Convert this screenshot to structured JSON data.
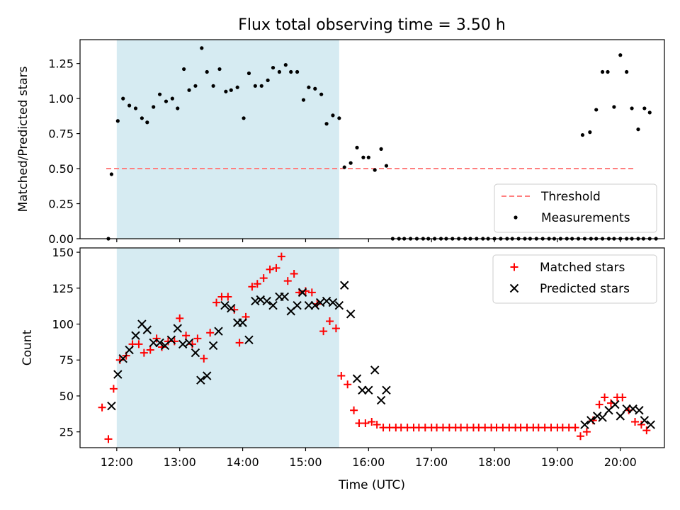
{
  "chart_data": [
    {
      "type": "scatter",
      "title": "Flux total observing time = 3.50 h",
      "xlabel": "",
      "ylabel": "Matched/Predicted stars",
      "xlim": [
        "11:25",
        "20:42"
      ],
      "ylim": [
        0,
        1.42
      ],
      "yticks": [
        "0.00",
        "0.25",
        "0.50",
        "0.75",
        "1.00",
        "1.25"
      ],
      "shaded_span": {
        "start": "12:00",
        "end": "15:32",
        "color": "#add8e6"
      },
      "threshold": {
        "name": "Threshold",
        "value": 0.5,
        "x_start": "11:50",
        "x_end": "20:15",
        "color": "#ff7f7f",
        "style": "dashed"
      },
      "legend": {
        "placement": "lower-right",
        "entries": [
          "Threshold",
          "Measurements"
        ]
      },
      "series": [
        {
          "name": "Measurements",
          "color": "#000000",
          "marker": "dot",
          "points": [
            [
              "11:52",
              0.0
            ],
            [
              "11:55",
              0.46
            ],
            [
              "12:01",
              0.84
            ],
            [
              "12:06",
              1.0
            ],
            [
              "12:12",
              0.95
            ],
            [
              "12:18",
              0.93
            ],
            [
              "12:24",
              0.86
            ],
            [
              "12:29",
              0.83
            ],
            [
              "12:35",
              0.94
            ],
            [
              "12:41",
              1.03
            ],
            [
              "12:47",
              0.98
            ],
            [
              "12:53",
              1.0
            ],
            [
              "12:58",
              0.93
            ],
            [
              "13:04",
              1.21
            ],
            [
              "13:09",
              1.06
            ],
            [
              "13:15",
              1.09
            ],
            [
              "13:21",
              1.36
            ],
            [
              "13:26",
              1.19
            ],
            [
              "13:32",
              1.09
            ],
            [
              "13:38",
              1.21
            ],
            [
              "13:44",
              1.05
            ],
            [
              "13:49",
              1.06
            ],
            [
              "13:55",
              1.08
            ],
            [
              "14:01",
              0.86
            ],
            [
              "14:06",
              1.18
            ],
            [
              "14:12",
              1.09
            ],
            [
              "14:18",
              1.09
            ],
            [
              "14:24",
              1.13
            ],
            [
              "14:29",
              1.22
            ],
            [
              "14:35",
              1.19
            ],
            [
              "14:41",
              1.24
            ],
            [
              "14:46",
              1.19
            ],
            [
              "14:52",
              1.19
            ],
            [
              "14:58",
              0.99
            ],
            [
              "15:03",
              1.08
            ],
            [
              "15:09",
              1.07
            ],
            [
              "15:15",
              1.03
            ],
            [
              "15:20",
              0.82
            ],
            [
              "15:26",
              0.88
            ],
            [
              "15:32",
              0.86
            ],
            [
              "15:37",
              0.51
            ],
            [
              "15:43",
              0.54
            ],
            [
              "15:49",
              0.65
            ],
            [
              "15:55",
              0.58
            ],
            [
              "16:00",
              0.58
            ],
            [
              "16:06",
              0.49
            ],
            [
              "16:12",
              0.64
            ],
            [
              "16:17",
              0.52
            ],
            [
              "16:23",
              0.0
            ],
            [
              "16:29",
              0.0
            ],
            [
              "16:34",
              0.0
            ],
            [
              "16:40",
              0.0
            ],
            [
              "16:46",
              0.0
            ],
            [
              "16:52",
              0.0
            ],
            [
              "16:57",
              0.0
            ],
            [
              "17:03",
              0.0
            ],
            [
              "17:09",
              0.0
            ],
            [
              "17:14",
              0.0
            ],
            [
              "17:20",
              0.0
            ],
            [
              "17:26",
              0.0
            ],
            [
              "17:32",
              0.0
            ],
            [
              "17:37",
              0.0
            ],
            [
              "17:43",
              0.0
            ],
            [
              "17:49",
              0.0
            ],
            [
              "17:54",
              0.0
            ],
            [
              "18:00",
              0.0
            ],
            [
              "18:06",
              0.0
            ],
            [
              "18:12",
              0.0
            ],
            [
              "18:17",
              0.0
            ],
            [
              "18:23",
              0.0
            ],
            [
              "18:29",
              0.0
            ],
            [
              "18:34",
              0.0
            ],
            [
              "18:40",
              0.0
            ],
            [
              "18:46",
              0.0
            ],
            [
              "18:52",
              0.0
            ],
            [
              "18:57",
              0.0
            ],
            [
              "19:03",
              0.0
            ],
            [
              "19:09",
              0.0
            ],
            [
              "19:14",
              0.0
            ],
            [
              "19:20",
              0.0
            ],
            [
              "19:26",
              0.0
            ],
            [
              "19:32",
              0.0
            ],
            [
              "19:37",
              0.0
            ],
            [
              "19:43",
              0.0
            ],
            [
              "19:49",
              0.0
            ],
            [
              "19:54",
              0.0
            ],
            [
              "20:00",
              0.0
            ],
            [
              "20:06",
              0.0
            ],
            [
              "20:11",
              0.0
            ],
            [
              "20:17",
              0.0
            ],
            [
              "20:22",
              0.0
            ],
            [
              "20:28",
              0.0
            ],
            [
              "20:34",
              0.0
            ],
            [
              "19:24",
              0.74
            ],
            [
              "19:31",
              0.76
            ],
            [
              "19:37",
              0.92
            ],
            [
              "19:43",
              1.19
            ],
            [
              "19:48",
              1.19
            ],
            [
              "19:54",
              0.94
            ],
            [
              "20:00",
              1.31
            ],
            [
              "20:06",
              1.19
            ],
            [
              "20:11",
              0.93
            ],
            [
              "20:17",
              0.78
            ],
            [
              "20:23",
              0.93
            ],
            [
              "20:28",
              0.9
            ]
          ]
        }
      ]
    },
    {
      "type": "scatter",
      "title": "",
      "xlabel": "Time (UTC)",
      "ylabel": "Count",
      "xlim": [
        "11:25",
        "20:42"
      ],
      "ylim": [
        14,
        153
      ],
      "yticks": [
        "25",
        "50",
        "75",
        "100",
        "125",
        "150"
      ],
      "xticks": [
        "12:00",
        "13:00",
        "14:00",
        "15:00",
        "16:00",
        "17:00",
        "18:00",
        "19:00",
        "20:00"
      ],
      "shaded_span": {
        "start": "12:00",
        "end": "15:32",
        "color": "#add8e6"
      },
      "legend": {
        "placement": "upper-right",
        "entries": [
          "Matched stars",
          "Predicted stars"
        ]
      },
      "series": [
        {
          "name": "Matched stars",
          "color": "#ff0000",
          "marker": "plus",
          "points": [
            [
              "11:46",
              42
            ],
            [
              "11:52",
              20
            ],
            [
              "11:57",
              55
            ],
            [
              "12:03",
              75
            ],
            [
              "12:09",
              78
            ],
            [
              "12:15",
              86
            ],
            [
              "12:21",
              86
            ],
            [
              "12:26",
              80
            ],
            [
              "12:32",
              82
            ],
            [
              "12:38",
              90
            ],
            [
              "12:43",
              84
            ],
            [
              "12:49",
              88
            ],
            [
              "12:55",
              88
            ],
            [
              "13:00",
              104
            ],
            [
              "13:06",
              92
            ],
            [
              "13:12",
              86
            ],
            [
              "13:17",
              90
            ],
            [
              "13:23",
              76
            ],
            [
              "13:29",
              94
            ],
            [
              "13:35",
              115
            ],
            [
              "13:40",
              119
            ],
            [
              "13:46",
              119
            ],
            [
              "13:52",
              110
            ],
            [
              "13:57",
              87
            ],
            [
              "14:03",
              105
            ],
            [
              "14:09",
              126
            ],
            [
              "14:14",
              128
            ],
            [
              "14:20",
              132
            ],
            [
              "14:26",
              138
            ],
            [
              "14:32",
              139
            ],
            [
              "14:37",
              147
            ],
            [
              "14:43",
              130
            ],
            [
              "14:49",
              135
            ],
            [
              "14:54",
              122
            ],
            [
              "15:00",
              123
            ],
            [
              "15:06",
              122
            ],
            [
              "15:11",
              114
            ],
            [
              "15:17",
              95
            ],
            [
              "15:23",
              102
            ],
            [
              "15:29",
              97
            ],
            [
              "15:34",
              64
            ],
            [
              "15:40",
              58
            ],
            [
              "15:46",
              40
            ],
            [
              "15:51",
              31
            ],
            [
              "15:57",
              31
            ],
            [
              "16:03",
              32
            ],
            [
              "16:08",
              30
            ],
            [
              "16:14",
              28
            ],
            [
              "16:20",
              28
            ],
            [
              "16:26",
              28
            ],
            [
              "16:31",
              28
            ],
            [
              "16:37",
              28
            ],
            [
              "16:43",
              28
            ],
            [
              "16:48",
              28
            ],
            [
              "16:54",
              28
            ],
            [
              "17:00",
              28
            ],
            [
              "17:05",
              28
            ],
            [
              "17:11",
              28
            ],
            [
              "17:17",
              28
            ],
            [
              "17:23",
              28
            ],
            [
              "17:28",
              28
            ],
            [
              "17:34",
              28
            ],
            [
              "17:40",
              28
            ],
            [
              "17:45",
              28
            ],
            [
              "17:51",
              28
            ],
            [
              "17:57",
              28
            ],
            [
              "18:02",
              28
            ],
            [
              "18:08",
              28
            ],
            [
              "18:14",
              28
            ],
            [
              "18:20",
              28
            ],
            [
              "18:25",
              28
            ],
            [
              "18:31",
              28
            ],
            [
              "18:37",
              28
            ],
            [
              "18:42",
              28
            ],
            [
              "18:48",
              28
            ],
            [
              "18:54",
              28
            ],
            [
              "19:00",
              28
            ],
            [
              "19:05",
              28
            ],
            [
              "19:11",
              28
            ],
            [
              "19:17",
              28
            ],
            [
              "19:22",
              22
            ],
            [
              "19:28",
              25
            ],
            [
              "19:34",
              33
            ],
            [
              "19:40",
              44
            ],
            [
              "19:45",
              49
            ],
            [
              "19:51",
              45
            ],
            [
              "19:57",
              49
            ],
            [
              "20:02",
              49
            ],
            [
              "20:08",
              40
            ],
            [
              "20:14",
              32
            ],
            [
              "20:20",
              30
            ],
            [
              "20:25",
              26
            ]
          ]
        },
        {
          "name": "Predicted stars",
          "color": "#000000",
          "marker": "x",
          "points": [
            [
              "11:55",
              43
            ],
            [
              "12:01",
              65
            ],
            [
              "12:06",
              76
            ],
            [
              "12:12",
              82
            ],
            [
              "12:18",
              92
            ],
            [
              "12:24",
              100
            ],
            [
              "12:29",
              96
            ],
            [
              "12:35",
              87
            ],
            [
              "12:41",
              87
            ],
            [
              "12:46",
              85
            ],
            [
              "12:52",
              89
            ],
            [
              "12:58",
              97
            ],
            [
              "13:03",
              86
            ],
            [
              "13:09",
              87
            ],
            [
              "13:15",
              80
            ],
            [
              "13:20",
              61
            ],
            [
              "13:26",
              64
            ],
            [
              "13:32",
              85
            ],
            [
              "13:37",
              95
            ],
            [
              "13:43",
              113
            ],
            [
              "13:49",
              111
            ],
            [
              "13:55",
              101
            ],
            [
              "14:00",
              101
            ],
            [
              "14:06",
              89
            ],
            [
              "14:12",
              116
            ],
            [
              "14:17",
              117
            ],
            [
              "14:23",
              116
            ],
            [
              "14:29",
              113
            ],
            [
              "14:35",
              119
            ],
            [
              "14:40",
              119
            ],
            [
              "14:46",
              109
            ],
            [
              "14:52",
              113
            ],
            [
              "14:57",
              122
            ],
            [
              "15:03",
              113
            ],
            [
              "15:09",
              113
            ],
            [
              "15:14",
              115
            ],
            [
              "15:20",
              116
            ],
            [
              "15:26",
              115
            ],
            [
              "15:32",
              113
            ],
            [
              "15:37",
              127
            ],
            [
              "15:43",
              107
            ],
            [
              "15:49",
              62
            ],
            [
              "15:54",
              54
            ],
            [
              "16:00",
              54
            ],
            [
              "16:06",
              68
            ],
            [
              "16:12",
              47
            ],
            [
              "16:17",
              54
            ],
            [
              "19:26",
              30
            ],
            [
              "19:32",
              33
            ],
            [
              "19:38",
              36
            ],
            [
              "19:43",
              35
            ],
            [
              "19:49",
              40
            ],
            [
              "19:55",
              44
            ],
            [
              "20:00",
              36
            ],
            [
              "20:06",
              41
            ],
            [
              "20:12",
              41
            ],
            [
              "20:18",
              40
            ],
            [
              "20:23",
              33
            ],
            [
              "20:29",
              30
            ]
          ]
        }
      ]
    }
  ]
}
